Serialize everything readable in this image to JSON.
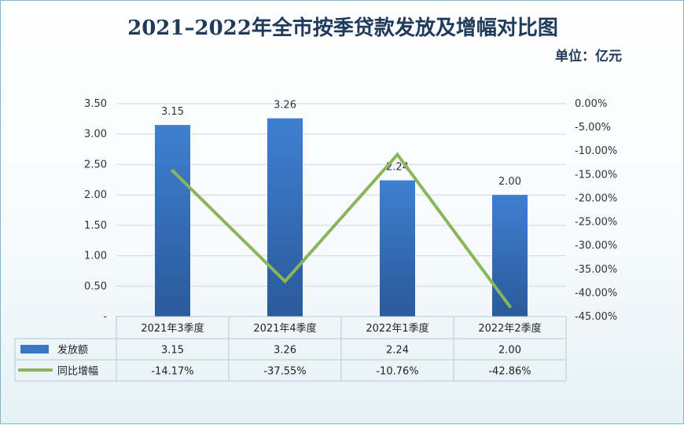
{
  "title": "2021–2022年全市按季贷款发放及增幅对比图",
  "unit": "单位：亿元",
  "chart_data": {
    "type": "bar",
    "categories": [
      "2021年3季度",
      "2021年4季度",
      "2022年1季度",
      "2022年2季度"
    ],
    "series": [
      {
        "name": "发放额",
        "type": "bar",
        "axis": "left",
        "values": [
          3.15,
          3.26,
          2.24,
          2.0
        ],
        "labels": [
          "3.15",
          "3.26",
          "2.24",
          "2.00"
        ],
        "color": "#3a78c7"
      },
      {
        "name": "同比增幅",
        "type": "line",
        "axis": "right",
        "values": [
          -14.17,
          -37.55,
          -10.76,
          -42.86
        ],
        "labels": [
          "-14.17%",
          "-37.55%",
          "-10.76%",
          "-42.86%"
        ],
        "color": "#8ab55a"
      }
    ],
    "y_left": {
      "range": [
        0,
        3.5
      ],
      "ticks": [
        "-",
        "0.50",
        "1.00",
        "1.50",
        "2.00",
        "2.50",
        "3.00",
        "3.50"
      ]
    },
    "y_right": {
      "range": [
        -45,
        0
      ],
      "ticks": [
        "0.00%",
        "-5.00%",
        "-10.00%",
        "-15.00%",
        "-20.00%",
        "-25.00%",
        "-30.00%",
        "-35.00%",
        "-40.00%",
        "-45.00%"
      ]
    },
    "grid": true,
    "data_table": true
  }
}
